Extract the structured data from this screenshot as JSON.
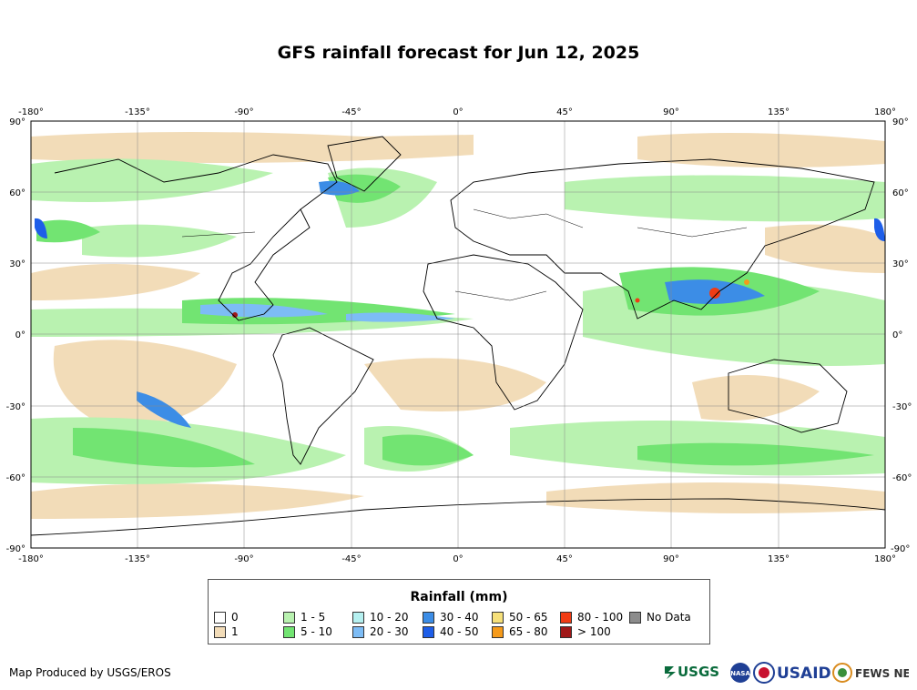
{
  "title": "GFS rainfall forecast for Jun 12, 2025",
  "map": {
    "lon_ticks": [
      "-180°",
      "-135°",
      "-90°",
      "-45°",
      "0°",
      "45°",
      "90°",
      "135°",
      "180°"
    ],
    "lat_ticks": [
      "90°",
      "60°",
      "30°",
      "0°",
      "-30°",
      "-60°",
      "-90°"
    ],
    "ocean_color": "#ffffff",
    "land_border_color": "#000000",
    "grid_color": "#888888"
  },
  "legend": {
    "title": "Rainfall (mm)",
    "items": [
      {
        "label": "0",
        "color": "#ffffff"
      },
      {
        "label": "1",
        "color": "#f2dcb8"
      },
      {
        "label": "1 - 5",
        "color": "#b9f2b0"
      },
      {
        "label": "5 - 10",
        "color": "#72e472"
      },
      {
        "label": "10 - 20",
        "color": "#b5f0f0"
      },
      {
        "label": "20 - 30",
        "color": "#7dbcf5"
      },
      {
        "label": "30 - 40",
        "color": "#3c8de6"
      },
      {
        "label": "40 - 50",
        "color": "#1e5ee8"
      },
      {
        "label": "50 - 65",
        "color": "#f6e07a"
      },
      {
        "label": "65 - 80",
        "color": "#f59a1a"
      },
      {
        "label": "80 - 100",
        "color": "#f03c14"
      },
      {
        "label": "> 100",
        "color": "#a01818"
      },
      {
        "label": "No Data",
        "color": "#8c8c8c"
      }
    ]
  },
  "credit": "Map Produced by USGS/EROS",
  "logos": {
    "usgs": "USGS",
    "nasa": "NASA",
    "usaid": "USAID",
    "fews": "FEWS NET"
  }
}
